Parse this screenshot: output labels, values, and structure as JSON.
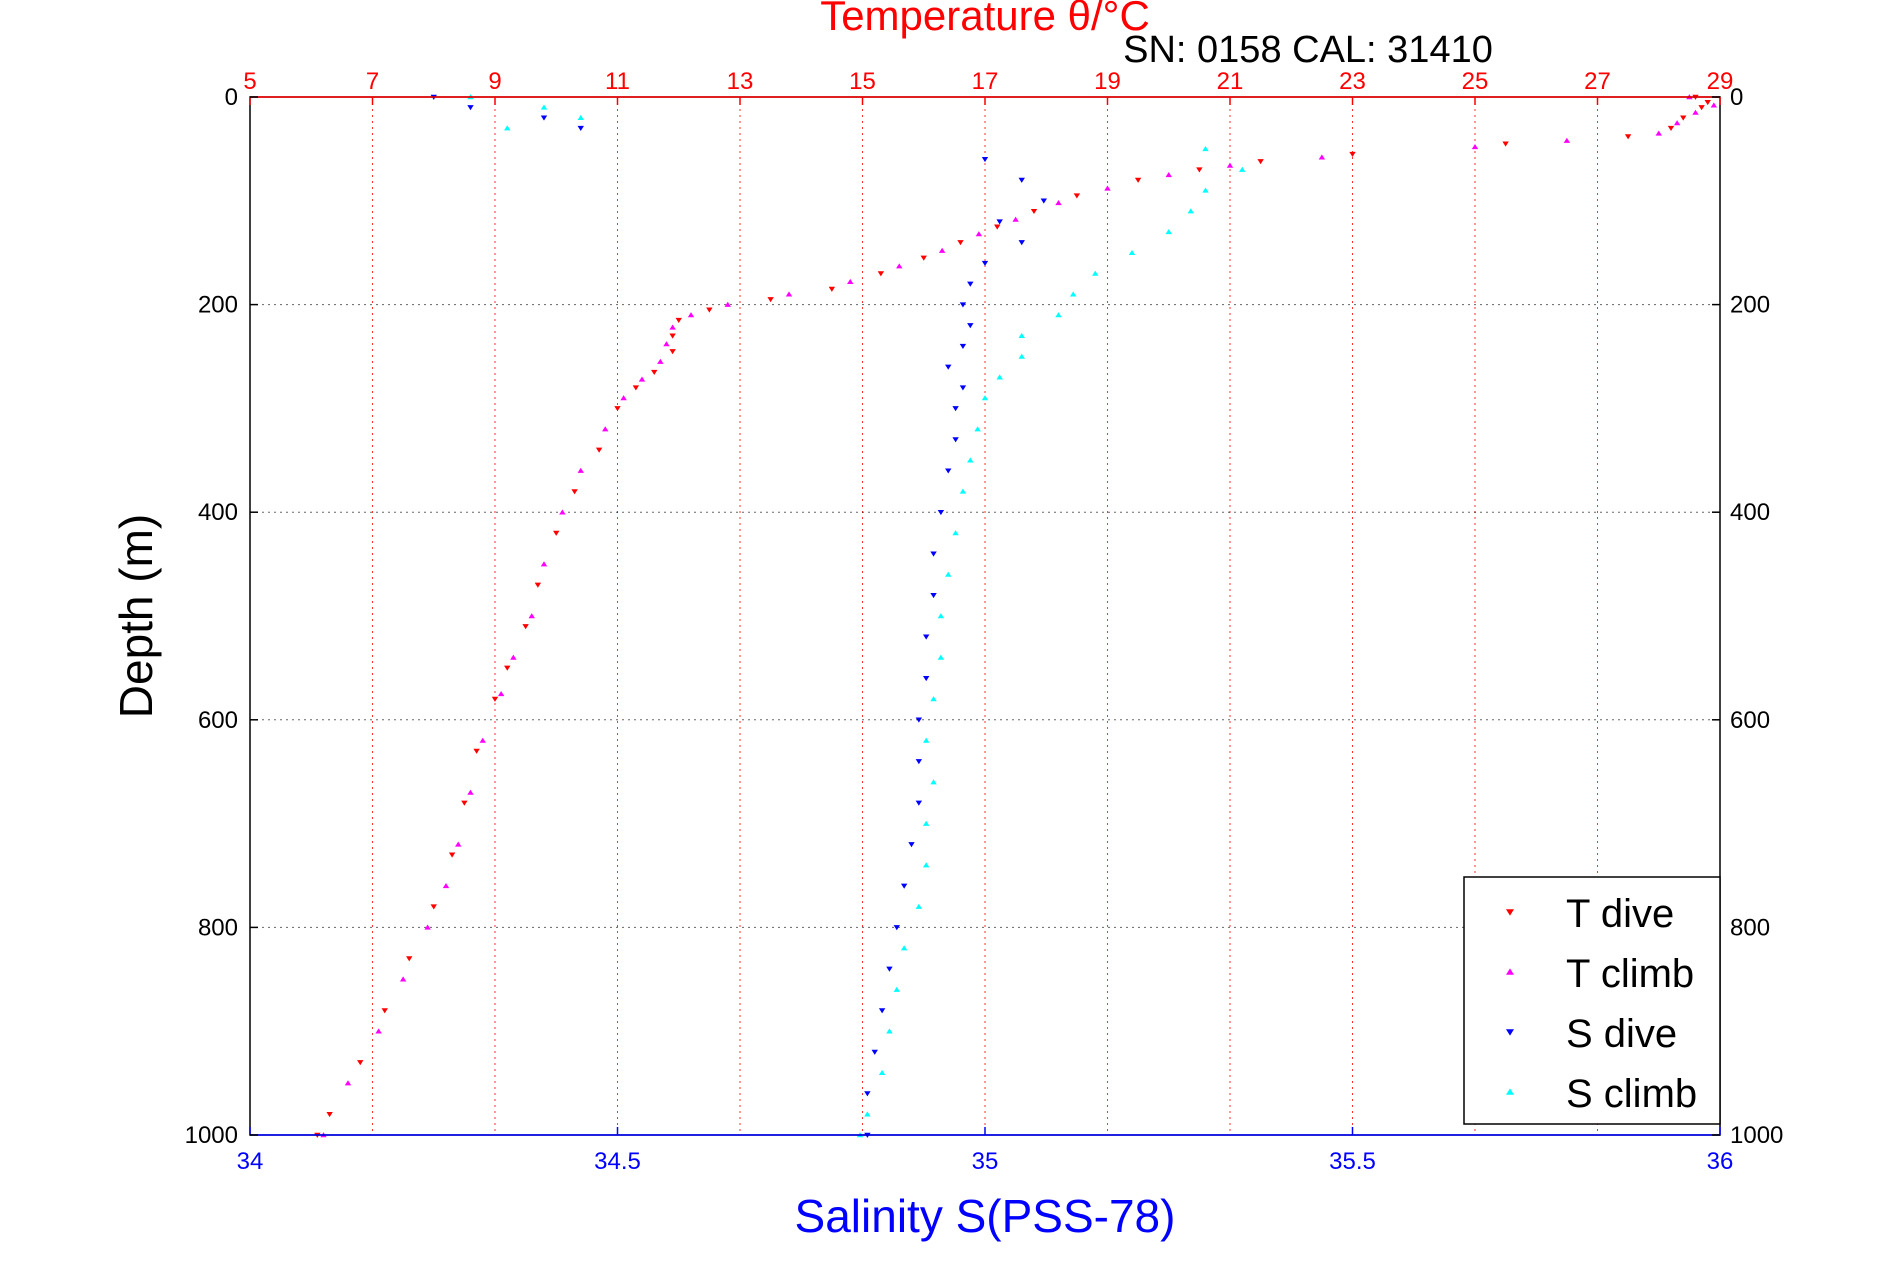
{
  "chart_data": {
    "type": "scatter",
    "title_top": "Temperature θ/°C",
    "subtitle": "SN: 0158  CAL: 31410",
    "xlabel": "Salinity S(PSS-78)",
    "ylabel": "Depth (m)",
    "x_salinity_range": [
      34,
      36
    ],
    "x_salinity_ticks": [
      "34",
      "34.5",
      "35",
      "35.5",
      "36"
    ],
    "x_temperature_range": [
      5,
      29
    ],
    "x_temperature_ticks": [
      "5",
      "7",
      "9",
      "11",
      "13",
      "15",
      "17",
      "19",
      "21",
      "23",
      "25",
      "27",
      "29"
    ],
    "y_range": [
      0,
      1000
    ],
    "y_reversed": true,
    "y_ticks": [
      "0",
      "200",
      "400",
      "600",
      "800",
      "1000"
    ],
    "grid": true,
    "legend_position": "bottom-right",
    "colors": {
      "temperature_axis": "#ff0000",
      "salinity_axis": "#0000ff",
      "t_dive": "#ff0000",
      "t_climb": "#ff00ff",
      "s_dive": "#0000ff",
      "s_climb": "#00ffff"
    },
    "series": [
      {
        "name": "T dive",
        "axis": "temperature",
        "marker": "triangle-down",
        "points": [
          [
            28.6,
            0
          ],
          [
            28.8,
            5
          ],
          [
            28.7,
            10
          ],
          [
            28.4,
            20
          ],
          [
            28.2,
            30
          ],
          [
            27.5,
            38
          ],
          [
            25.5,
            45
          ],
          [
            23,
            55
          ],
          [
            21.5,
            62
          ],
          [
            20.5,
            70
          ],
          [
            19.5,
            80
          ],
          [
            18.5,
            95
          ],
          [
            17.8,
            110
          ],
          [
            17.2,
            125
          ],
          [
            16.6,
            140
          ],
          [
            16.0,
            155
          ],
          [
            15.3,
            170
          ],
          [
            14.5,
            185
          ],
          [
            13.5,
            195
          ],
          [
            12.5,
            205
          ],
          [
            12.0,
            215
          ],
          [
            11.9,
            230
          ],
          [
            11.9,
            245
          ],
          [
            11.6,
            265
          ],
          [
            11.3,
            280
          ],
          [
            11.0,
            300
          ],
          [
            10.7,
            340
          ],
          [
            10.3,
            380
          ],
          [
            10.0,
            420
          ],
          [
            9.7,
            470
          ],
          [
            9.5,
            510
          ],
          [
            9.2,
            550
          ],
          [
            9.0,
            580
          ],
          [
            8.7,
            630
          ],
          [
            8.5,
            680
          ],
          [
            8.3,
            730
          ],
          [
            8.0,
            780
          ],
          [
            7.6,
            830
          ],
          [
            7.2,
            880
          ],
          [
            6.8,
            930
          ],
          [
            6.3,
            980
          ],
          [
            6.1,
            1000
          ]
        ]
      },
      {
        "name": "T climb",
        "axis": "temperature",
        "marker": "triangle-up",
        "points": [
          [
            28.5,
            0
          ],
          [
            28.9,
            8
          ],
          [
            28.6,
            15
          ],
          [
            28.3,
            25
          ],
          [
            28.0,
            35
          ],
          [
            26.5,
            42
          ],
          [
            25.0,
            48
          ],
          [
            22.5,
            58
          ],
          [
            21.0,
            66
          ],
          [
            20.0,
            75
          ],
          [
            19.0,
            88
          ],
          [
            18.2,
            102
          ],
          [
            17.5,
            118
          ],
          [
            16.9,
            132
          ],
          [
            16.3,
            148
          ],
          [
            15.6,
            163
          ],
          [
            14.8,
            178
          ],
          [
            13.8,
            190
          ],
          [
            12.8,
            200
          ],
          [
            12.2,
            210
          ],
          [
            11.9,
            222
          ],
          [
            11.8,
            238
          ],
          [
            11.7,
            255
          ],
          [
            11.4,
            272
          ],
          [
            11.1,
            290
          ],
          [
            10.8,
            320
          ],
          [
            10.4,
            360
          ],
          [
            10.1,
            400
          ],
          [
            9.8,
            450
          ],
          [
            9.6,
            500
          ],
          [
            9.3,
            540
          ],
          [
            9.1,
            575
          ],
          [
            8.8,
            620
          ],
          [
            8.6,
            670
          ],
          [
            8.4,
            720
          ],
          [
            8.2,
            760
          ],
          [
            7.9,
            800
          ],
          [
            7.5,
            850
          ],
          [
            7.1,
            900
          ],
          [
            6.6,
            950
          ],
          [
            6.2,
            1000
          ]
        ]
      },
      {
        "name": "S dive",
        "axis": "salinity",
        "marker": "triangle-down",
        "points": [
          [
            34.25,
            0
          ],
          [
            34.3,
            10
          ],
          [
            34.4,
            20
          ],
          [
            34.45,
            30
          ],
          [
            35.0,
            60
          ],
          [
            35.05,
            80
          ],
          [
            35.08,
            100
          ],
          [
            35.02,
            120
          ],
          [
            35.05,
            140
          ],
          [
            35.0,
            160
          ],
          [
            34.98,
            180
          ],
          [
            34.97,
            200
          ],
          [
            34.98,
            220
          ],
          [
            34.97,
            240
          ],
          [
            34.95,
            260
          ],
          [
            34.97,
            280
          ],
          [
            34.96,
            300
          ],
          [
            34.96,
            330
          ],
          [
            34.95,
            360
          ],
          [
            34.94,
            400
          ],
          [
            34.93,
            440
          ],
          [
            34.93,
            480
          ],
          [
            34.92,
            520
          ],
          [
            34.92,
            560
          ],
          [
            34.91,
            600
          ],
          [
            34.91,
            640
          ],
          [
            34.91,
            680
          ],
          [
            34.9,
            720
          ],
          [
            34.89,
            760
          ],
          [
            34.88,
            800
          ],
          [
            34.87,
            840
          ],
          [
            34.86,
            880
          ],
          [
            34.85,
            920
          ],
          [
            34.84,
            960
          ],
          [
            34.84,
            1000
          ]
        ]
      },
      {
        "name": "S climb",
        "axis": "salinity",
        "marker": "triangle-up",
        "points": [
          [
            34.3,
            0
          ],
          [
            34.4,
            10
          ],
          [
            34.45,
            20
          ],
          [
            34.35,
            30
          ],
          [
            35.3,
            50
          ],
          [
            35.35,
            70
          ],
          [
            35.3,
            90
          ],
          [
            35.28,
            110
          ],
          [
            35.25,
            130
          ],
          [
            35.2,
            150
          ],
          [
            35.15,
            170
          ],
          [
            35.12,
            190
          ],
          [
            35.1,
            210
          ],
          [
            35.05,
            230
          ],
          [
            35.05,
            250
          ],
          [
            35.02,
            270
          ],
          [
            35.0,
            290
          ],
          [
            34.99,
            320
          ],
          [
            34.98,
            350
          ],
          [
            34.97,
            380
          ],
          [
            34.96,
            420
          ],
          [
            34.95,
            460
          ],
          [
            34.94,
            500
          ],
          [
            34.94,
            540
          ],
          [
            34.93,
            580
          ],
          [
            34.92,
            620
          ],
          [
            34.93,
            660
          ],
          [
            34.92,
            700
          ],
          [
            34.92,
            740
          ],
          [
            34.91,
            780
          ],
          [
            34.89,
            820
          ],
          [
            34.88,
            860
          ],
          [
            34.87,
            900
          ],
          [
            34.86,
            940
          ],
          [
            34.84,
            980
          ],
          [
            34.83,
            1000
          ]
        ]
      }
    ]
  }
}
